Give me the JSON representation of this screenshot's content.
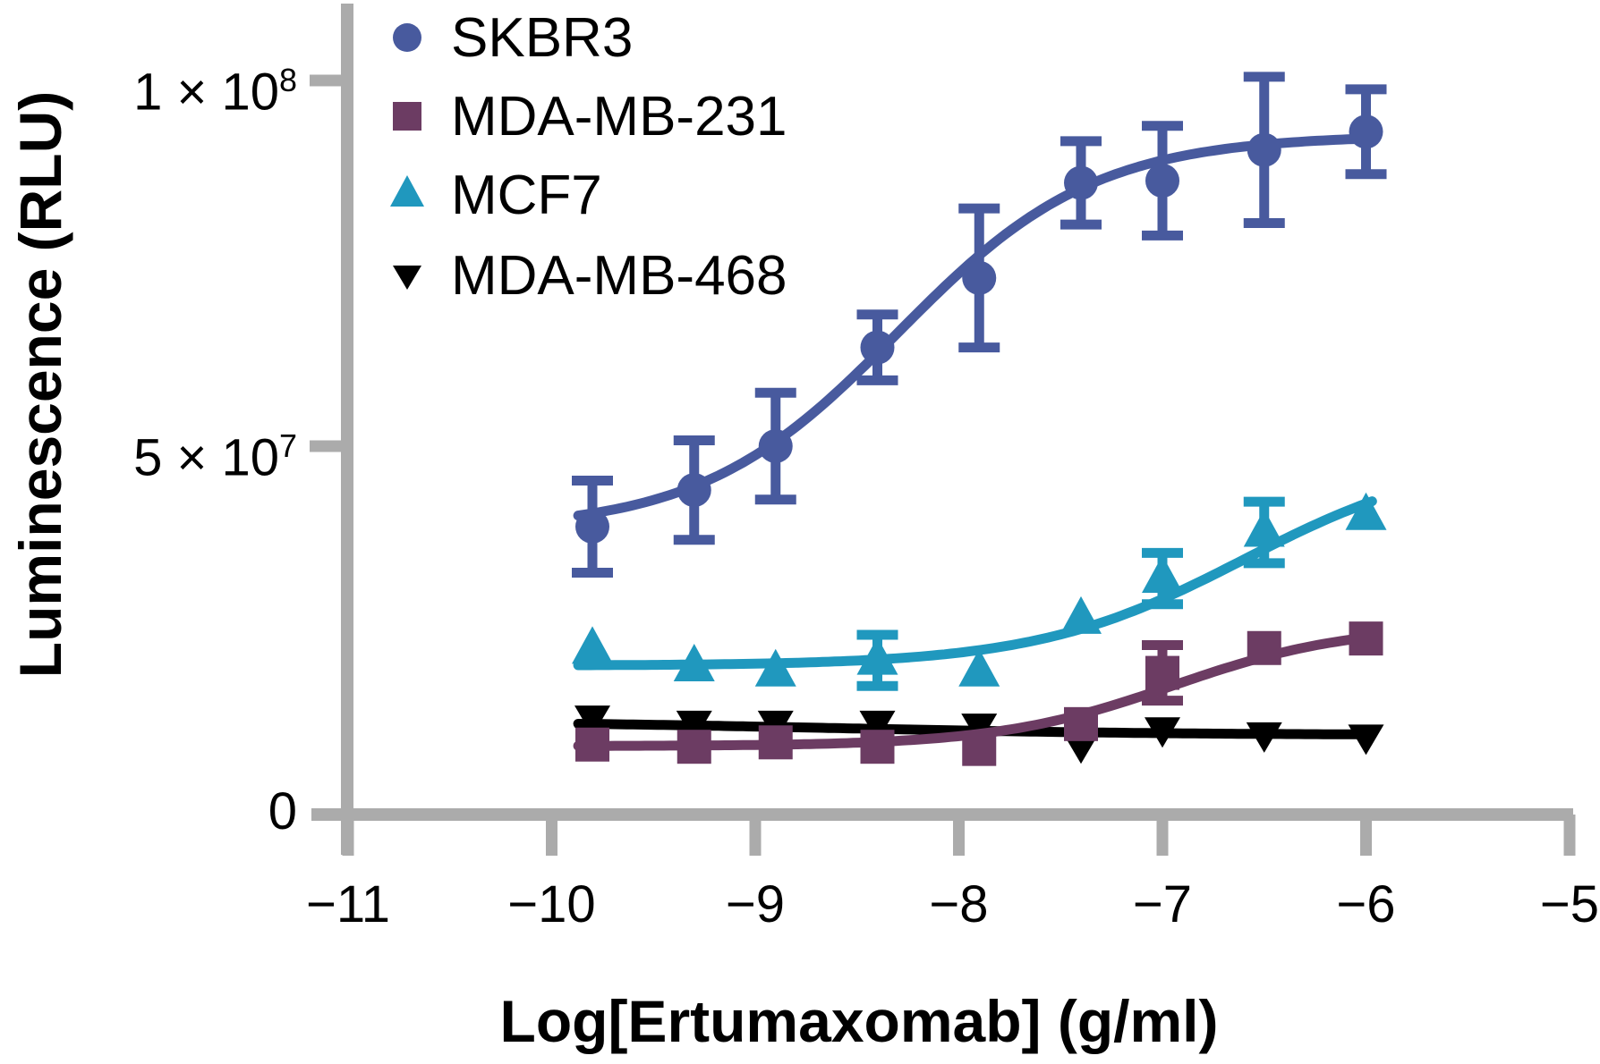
{
  "chart_data": {
    "type": "line",
    "title": "",
    "xlabel": "Log[Ertumaxomab] (g/ml)",
    "ylabel": "Luminescence (RLU)",
    "background": "#ffffff",
    "axis_color": "#ABABAB",
    "grid": false,
    "legend_position": "top-left-inside",
    "xlim": [
      -11.2,
      -4.85
    ],
    "ylim": [
      0,
      110000000
    ],
    "x_ticks": [
      -11,
      -10,
      -9,
      -8,
      -7,
      -6,
      -5
    ],
    "x_tick_labels": [
      "−11",
      "−10",
      "−9",
      "−8",
      "−7",
      "−6",
      "−5"
    ],
    "y_ticks": [
      {
        "value": 0,
        "base": "0",
        "exp": ""
      },
      {
        "value": 50000000,
        "base": "5 × 10",
        "exp": "7"
      },
      {
        "value": 100000000,
        "base": "1 × 10",
        "exp": "8"
      }
    ],
    "x": [
      -9.8,
      -9.3,
      -8.9,
      -8.4,
      -7.9,
      -7.4,
      -7.0,
      -6.5,
      -6.0
    ],
    "series": [
      {
        "name": "SKBR3",
        "marker": "circle",
        "color": "#485A9E",
        "values": [
          39000000,
          44000000,
          50000000,
          63500000,
          73000000,
          86000000,
          86300000,
          90500000,
          93000000
        ],
        "errors": [
          6300000,
          6800000,
          7300000,
          4500000,
          9500000,
          5700000,
          7500000,
          10000000,
          5800000
        ],
        "fit": {
          "bottom": 38500000,
          "top": 92500000,
          "logec50": -8.3,
          "hill": 0.9
        }
      },
      {
        "name": "MDA-MB-231",
        "marker": "square",
        "color": "#6C3C63",
        "values": [
          9200000,
          8900000,
          9500000,
          8900000,
          8600000,
          12000000,
          19000000,
          22400000,
          23700000
        ],
        "errors": [
          0,
          0,
          0,
          0,
          0,
          0,
          3800000,
          0,
          0
        ],
        "fit": {
          "bottom": 9000000,
          "top": 25500000,
          "logec50": -6.95,
          "hill": 1.0
        }
      },
      {
        "name": "MCF7",
        "marker": "triangle-up",
        "color": "#2098BE",
        "values": [
          22200000,
          19800000,
          19100000,
          20700000,
          19100000,
          26300000,
          31900000,
          38200000,
          40500000
        ],
        "errors": [
          0,
          0,
          0,
          3500000,
          0,
          0,
          3500000,
          4200000,
          0
        ],
        "fit": {
          "bottom": 20000000,
          "top": 49000000,
          "logec50": -6.6,
          "hill": 0.85
        }
      },
      {
        "name": "MDA-MB-468",
        "marker": "triangle-down",
        "color": "#000000",
        "values": [
          12700000,
          12000000,
          12000000,
          12000000,
          11600000,
          8900000,
          11100000,
          10400000,
          10100000
        ],
        "errors": [
          0,
          0,
          0,
          0,
          0,
          0,
          0,
          0,
          0
        ],
        "fit": {
          "bottom": 10500000,
          "top": 12400000,
          "logec50": -8.6,
          "hill": -0.5
        }
      }
    ]
  }
}
